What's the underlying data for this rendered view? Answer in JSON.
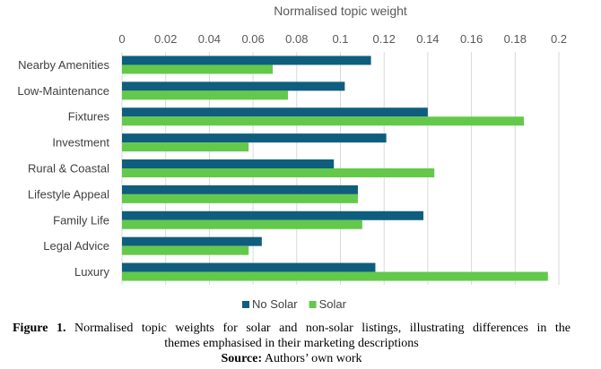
{
  "chart_data": {
    "type": "bar",
    "orientation": "horizontal",
    "title": "Normalised topic weight",
    "xlim": [
      0,
      0.2
    ],
    "ticks": [
      "0",
      "0.02",
      "0.04",
      "0.06",
      "0.08",
      "0.1",
      "0.12",
      "0.14",
      "0.16",
      "0.18",
      "0.2"
    ],
    "tick_values": [
      0,
      0.02,
      0.04,
      0.06,
      0.08,
      0.1,
      0.12,
      0.14,
      0.16,
      0.18,
      0.2
    ],
    "categories": [
      "Nearby Amenities",
      "Low-Maintenance",
      "Fixtures",
      "Investment",
      "Rural & Coastal",
      "Lifestyle Appeal",
      "Family Life",
      "Legal Advice",
      "Luxury"
    ],
    "series": [
      {
        "name": "No Solar",
        "color": "#0f5e7d",
        "values": [
          0.114,
          0.102,
          0.14,
          0.121,
          0.097,
          0.108,
          0.138,
          0.064,
          0.116
        ]
      },
      {
        "name": "Solar",
        "color": "#63c94a",
        "values": [
          0.069,
          0.076,
          0.184,
          0.058,
          0.143,
          0.108,
          0.11,
          0.058,
          0.195
        ]
      }
    ],
    "legend_position": "bottom",
    "grid": true
  },
  "caption": {
    "figure_label": "Figure 1.",
    "figure_text_line1": "Normalised topic weights for solar and non-solar listings, illustrating differences in the",
    "figure_text_line2": "themes emphasised in their marketing descriptions",
    "source_label": "Source:",
    "source_text": "Authors’ own work"
  }
}
